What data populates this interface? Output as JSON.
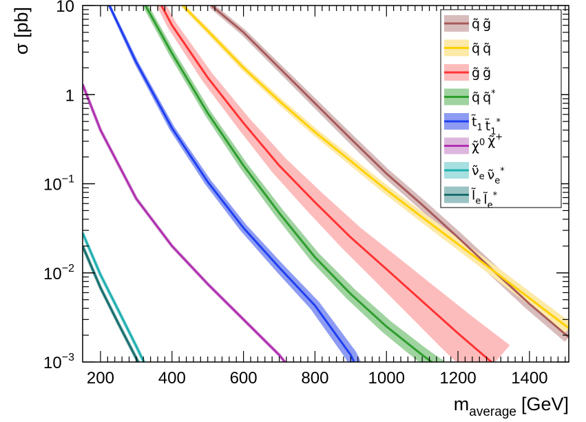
{
  "chart_data": {
    "type": "line",
    "title": "",
    "xlabel": "m",
    "xlabel_sub": "average",
    "xlabel_unit": "[GeV]",
    "ylabel": "σ [pb]",
    "xlim": [
      150,
      1510
    ],
    "ylim": [
      0.001,
      10
    ],
    "yscale": "log",
    "grid": false,
    "legend_position": "top-right",
    "x_ticks": [
      {
        "value": 200,
        "label": "200"
      },
      {
        "value": 400,
        "label": "400"
      },
      {
        "value": 600,
        "label": "600"
      },
      {
        "value": 800,
        "label": "800"
      },
      {
        "value": 1000,
        "label": "1000"
      },
      {
        "value": 1200,
        "label": "1200"
      },
      {
        "value": 1400,
        "label": "1400"
      }
    ],
    "y_ticks": [
      {
        "value": 10,
        "base": "10",
        "exp": ""
      },
      {
        "value": 1,
        "base": "1",
        "exp": ""
      },
      {
        "value": 0.1,
        "base": "10",
        "exp": "−1"
      },
      {
        "value": 0.01,
        "base": "10",
        "exp": "−2"
      },
      {
        "value": 0.001,
        "base": "10",
        "exp": "−3"
      }
    ],
    "series": [
      {
        "name": "q̃ g̃",
        "line_color": "#a85a5a",
        "band_color": "#d8bcbc",
        "x": [
          510,
          600,
          700,
          800,
          900,
          1000,
          1100,
          1200,
          1300,
          1400,
          1510
        ],
        "y": [
          10,
          5.0,
          2.0,
          0.8,
          0.32,
          0.13,
          0.058,
          0.025,
          0.0105,
          0.0045,
          0.0019
        ],
        "band_width": [
          8,
          9,
          10,
          11,
          12,
          13,
          14,
          15,
          16,
          17,
          18
        ]
      },
      {
        "name": "q̃ q̃",
        "line_color": "#ffd000",
        "band_color": "#fde9a8",
        "x": [
          430,
          500,
          600,
          700,
          800,
          900,
          1000,
          1100,
          1200,
          1300,
          1400,
          1510
        ],
        "y": [
          10,
          5.2,
          2.0,
          0.85,
          0.38,
          0.18,
          0.085,
          0.042,
          0.021,
          0.0105,
          0.0052,
          0.0024
        ],
        "band_width": [
          6,
          7,
          8,
          9,
          10,
          11,
          12,
          13,
          14,
          15,
          16,
          17
        ]
      },
      {
        "name": "g̃ g̃",
        "line_color": "#ff3333",
        "band_color": "#fdbcbc",
        "x": [
          300,
          400,
          500,
          600,
          700,
          800,
          900,
          1000,
          1100,
          1200,
          1300
        ],
        "y": [
          34,
          6.0,
          1.55,
          0.48,
          0.16,
          0.062,
          0.025,
          0.011,
          0.0048,
          0.0021,
          0.00095
        ],
        "band_width": [
          10,
          14,
          18,
          22,
          28,
          34,
          40,
          48,
          56,
          64,
          72
        ]
      },
      {
        "name": "q̃ q̃*",
        "line_color": "#2e9e2e",
        "band_color": "#9fd39f",
        "x": [
          320,
          400,
          500,
          600,
          700,
          800,
          900,
          1000,
          1100,
          1150
        ],
        "y": [
          11,
          2.9,
          0.62,
          0.16,
          0.047,
          0.015,
          0.0058,
          0.0025,
          0.0012,
          0.00085
        ],
        "band_width": [
          8,
          9,
          10,
          12,
          14,
          16,
          18,
          20,
          22,
          24
        ]
      },
      {
        "name": "t̃₁ t̃₁*",
        "line_color": "#1f3ff0",
        "band_color": "#8d9cf2",
        "x": [
          220,
          300,
          400,
          500,
          600,
          700,
          800,
          900,
          920
        ],
        "y": [
          11,
          2.3,
          0.42,
          0.105,
          0.032,
          0.0115,
          0.0043,
          0.0012,
          0.00082
        ],
        "band_width": [
          4,
          6,
          8,
          10,
          12,
          14,
          16,
          18,
          18
        ]
      },
      {
        "name": "χ̃⁰ χ̃⁺",
        "line_color": "#b030b0",
        "band_color": "#ddb6dd",
        "x": [
          150,
          200,
          300,
          400,
          500,
          600,
          700,
          730
        ],
        "y": [
          1.3,
          0.4,
          0.068,
          0.02,
          0.0075,
          0.003,
          0.0012,
          0.00085
        ],
        "band_width": [
          5,
          5,
          5,
          5,
          5,
          5,
          5,
          5
        ]
      },
      {
        "name": "ν̃ₑ ν̃ₑ*",
        "line_color": "#20b0b0",
        "band_color": "#a8dfe0",
        "x": [
          150,
          200,
          250,
          300,
          330
        ],
        "y": [
          0.028,
          0.0095,
          0.0038,
          0.0015,
          0.00085
        ],
        "band_width": [
          5,
          5,
          5,
          5,
          5
        ]
      },
      {
        "name": "l̃ₑ l̃ₑ*",
        "line_color": "#1a6f6f",
        "band_color": "#9cc3c3",
        "x": [
          150,
          200,
          250,
          300,
          315
        ],
        "y": [
          0.02,
          0.0068,
          0.0027,
          0.0011,
          0.00085
        ],
        "band_width": [
          5,
          5,
          5,
          5,
          5
        ]
      }
    ],
    "legend": [
      {
        "base": "q̃",
        "sub": "",
        "sup": "",
        "base2": "g̃",
        "sub2": "",
        "sup2": ""
      },
      {
        "base": "q̃",
        "sub": "",
        "sup": "",
        "base2": "q̃",
        "sub2": "",
        "sup2": ""
      },
      {
        "base": "g̃",
        "sub": "",
        "sup": "",
        "base2": "g̃",
        "sub2": "",
        "sup2": ""
      },
      {
        "base": "q̃",
        "sub": "",
        "sup": "",
        "base2": "q̃",
        "sub2": "",
        "sup2": "*"
      },
      {
        "base": "t̃",
        "sub": "1",
        "sup": "",
        "base2": "t̃",
        "sub2": "1",
        "sup2": "*"
      },
      {
        "base": "χ̃",
        "sub": "",
        "sup": "0",
        "base2": "χ̃",
        "sub2": "",
        "sup2": "+"
      },
      {
        "base": "ν̃",
        "sub": "e",
        "sup": "",
        "base2": "ν̃",
        "sub2": "e",
        "sup2": "*"
      },
      {
        "base": "l̃",
        "sub": "e",
        "sup": "",
        "base2": "l̃",
        "sub2": "e",
        "sup2": "*"
      }
    ]
  }
}
